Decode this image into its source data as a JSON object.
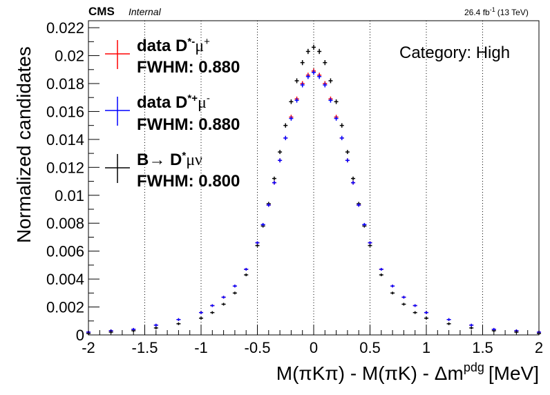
{
  "header": {
    "experiment": "CMS",
    "status": "Internal",
    "lumi_label": "26.4 fb",
    "lumi_exp": "-1",
    "energy_label": "(13 TeV)"
  },
  "category_text": "Category: High",
  "legend": {
    "entries": [
      {
        "name_main": "data D",
        "name_sup": "*-",
        "name_mu": "μ",
        "name_mu_sup": "+",
        "fwhm": "FWHM: 0.880",
        "color": "#ff0000"
      },
      {
        "name_main": "data D",
        "name_sup": "*+",
        "name_mu": "μ",
        "name_mu_sup": "-",
        "fwhm": "FWHM: 0.880",
        "color": "#0000ff"
      },
      {
        "name_main": "B→ D",
        "name_sup": "*",
        "name_mu": "μν",
        "name_mu_sup": "",
        "fwhm": "FWHM: 0.800",
        "color": "#000000"
      }
    ]
  },
  "chart_data": {
    "type": "scatter",
    "title": "",
    "xlabel": "M(πKπ) - M(πK) - Δm",
    "xlabel_sup": "pdg",
    "xlabel_unit": "[MeV]",
    "ylabel": "Normalized candidates",
    "xlim": [
      -2,
      2
    ],
    "ylim": [
      0,
      0.0225
    ],
    "x_ticks": [
      "-2",
      "-1.5",
      "-1",
      "-0.5",
      "0",
      "0.5",
      "1",
      "1.5",
      "2"
    ],
    "y_ticks": [
      "0",
      "0.002",
      "0.004",
      "0.006",
      "0.008",
      "0.01",
      "0.012",
      "0.014",
      "0.016",
      "0.018",
      "0.02",
      "0.022"
    ],
    "vertical_grid_at": [
      -1.5,
      -1,
      -0.5,
      0,
      0.5,
      1,
      1.5
    ],
    "x": [
      -2.0,
      -1.8,
      -1.6,
      -1.4,
      -1.2,
      -1.0,
      -0.9,
      -0.8,
      -0.7,
      -0.6,
      -0.5,
      -0.45,
      -0.4,
      -0.35,
      -0.3,
      -0.25,
      -0.2,
      -0.15,
      -0.1,
      -0.05,
      0.0,
      0.05,
      0.1,
      0.15,
      0.2,
      0.25,
      0.3,
      0.35,
      0.4,
      0.45,
      0.5,
      0.6,
      0.7,
      0.8,
      0.9,
      1.0,
      1.2,
      1.4,
      1.6,
      1.8,
      2.0
    ],
    "series": [
      {
        "name": "data D*-μ+",
        "color": "#ff0000",
        "values": [
          0.0002,
          0.0003,
          0.0004,
          0.0007,
          0.0011,
          0.0016,
          0.0021,
          0.0027,
          0.0035,
          0.0047,
          0.0066,
          0.0079,
          0.0093,
          0.0109,
          0.0125,
          0.0141,
          0.0156,
          0.0169,
          0.018,
          0.0186,
          0.0189,
          0.0186,
          0.018,
          0.0169,
          0.0156,
          0.0141,
          0.0125,
          0.0109,
          0.0093,
          0.0079,
          0.0066,
          0.0047,
          0.0035,
          0.0027,
          0.0021,
          0.0016,
          0.0011,
          0.0007,
          0.0004,
          0.0003,
          0.0002
        ]
      },
      {
        "name": "data D*+μ-",
        "color": "#0000ff",
        "values": [
          0.0002,
          0.0003,
          0.0004,
          0.0007,
          0.0011,
          0.0016,
          0.0021,
          0.0027,
          0.0035,
          0.0047,
          0.0066,
          0.0079,
          0.0093,
          0.0109,
          0.0125,
          0.0141,
          0.0155,
          0.0168,
          0.0179,
          0.0185,
          0.0188,
          0.0185,
          0.0179,
          0.0168,
          0.0155,
          0.0141,
          0.0125,
          0.0109,
          0.0093,
          0.0079,
          0.0066,
          0.0047,
          0.0035,
          0.0027,
          0.0021,
          0.0016,
          0.0011,
          0.0007,
          0.0004,
          0.0003,
          0.0002
        ]
      },
      {
        "name": "B→ D*μν",
        "color": "#000000",
        "values": [
          0.0001,
          0.0002,
          0.0003,
          0.0005,
          0.0008,
          0.0012,
          0.0016,
          0.0022,
          0.003,
          0.0043,
          0.0064,
          0.0078,
          0.0094,
          0.0112,
          0.0131,
          0.015,
          0.0167,
          0.0182,
          0.0195,
          0.0203,
          0.0206,
          0.0203,
          0.0195,
          0.0182,
          0.0167,
          0.015,
          0.0131,
          0.0112,
          0.0094,
          0.0078,
          0.0064,
          0.0043,
          0.003,
          0.0022,
          0.0016,
          0.0012,
          0.0008,
          0.0005,
          0.0003,
          0.0002,
          0.0001
        ]
      }
    ]
  }
}
